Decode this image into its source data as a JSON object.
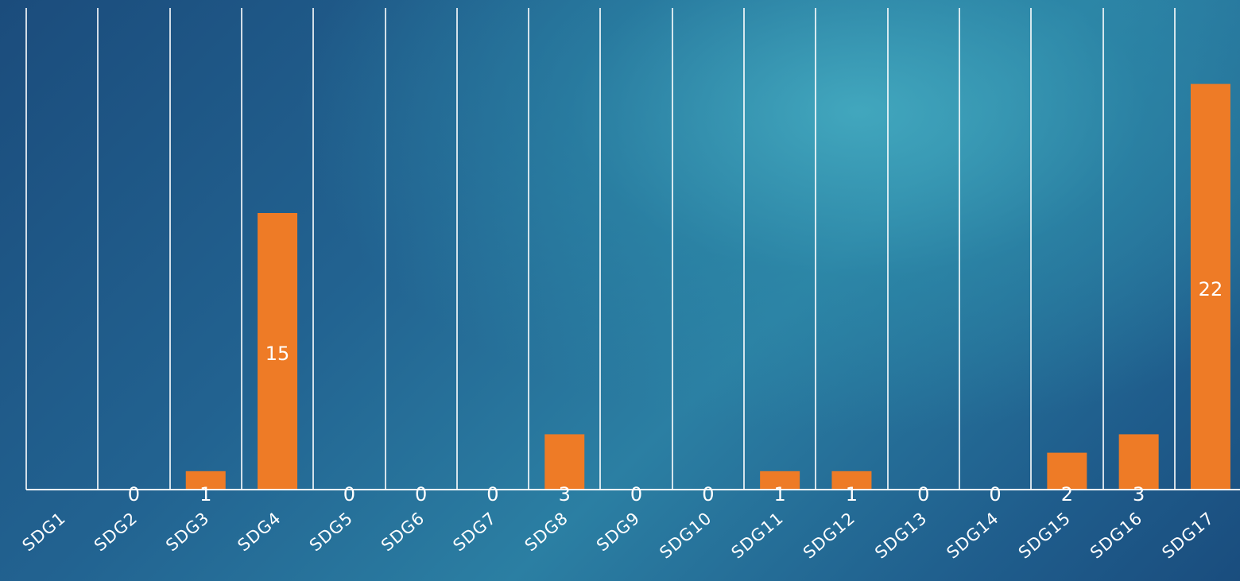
{
  "chart_data": {
    "type": "bar",
    "title": "",
    "xlabel": "",
    "ylabel": "",
    "categories": [
      "SDG1",
      "SDG2",
      "SDG3",
      "SDG4",
      "SDG5",
      "SDG6",
      "SDG7",
      "SDG8",
      "SDG9",
      "SDG10",
      "SDG11",
      "SDG12",
      "SDG13",
      "SDG14",
      "SDG15",
      "SDG16",
      "SDG17"
    ],
    "values": [
      null,
      0,
      1,
      15,
      0,
      0,
      0,
      3,
      0,
      0,
      1,
      1,
      0,
      0,
      2,
      3,
      22
    ],
    "data_labels": [
      "",
      "0",
      "1",
      "15",
      "0",
      "0",
      "0",
      "3",
      "0",
      "0",
      "1",
      "1",
      "0",
      "0",
      "2",
      "3",
      "22"
    ],
    "ylim": [
      0,
      25
    ],
    "grid": "vertical",
    "legend": "none",
    "colors": {
      "bar": "#ee7b26",
      "gridline": "#ffffff",
      "axis": "#ffffff",
      "label_text": "#ffffff"
    }
  }
}
